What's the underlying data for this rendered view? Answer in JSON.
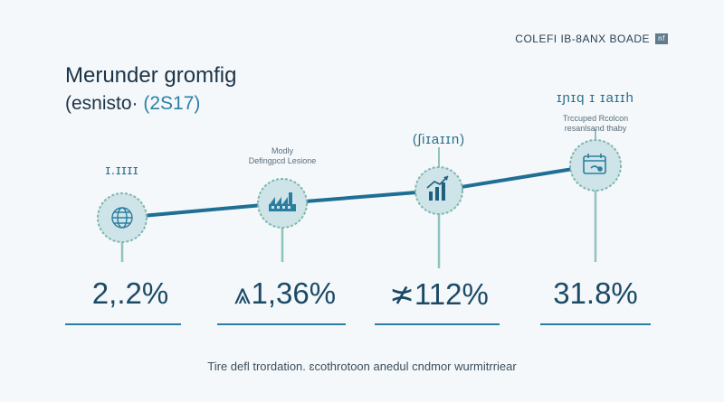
{
  "header": {
    "logo_text": "COLEFI IB-8ANX BOADE",
    "logo_mark": "nf",
    "title": "Merunder gromfig",
    "subtitle_prefix": "(esnisto·",
    "subtitle_number": "(2S17)"
  },
  "nodes": [
    {
      "icon": "globe-icon",
      "label_large": "ɪ.ɪɪɪɪ",
      "label_small": "",
      "value": "2,.2%"
    },
    {
      "icon": "factory-icon",
      "label_large": "",
      "label_small": "Modly\nDefingpcd Lesione",
      "value": "⩓1,36%"
    },
    {
      "icon": "bar-growth-icon",
      "label_large": "(ʃiɪaɪɪn)",
      "label_small": "",
      "value": "≭112%"
    },
    {
      "icon": "calendar-money-icon",
      "label_large": "ɪɲɪq ɪ ɪaɪɪh",
      "label_small": "Trccuped Rcolcon\nresanlsand thaby",
      "value": "31.8%"
    }
  ],
  "footer": {
    "text": "Tire defl trordation. ɛcothrotoon anedul cndmor wurmitrriear"
  },
  "colors": {
    "line": "#1f6f94",
    "node_fill": "#cfe4e8",
    "node_border": "#7fb8b0",
    "accent": "#2b7ea0"
  }
}
